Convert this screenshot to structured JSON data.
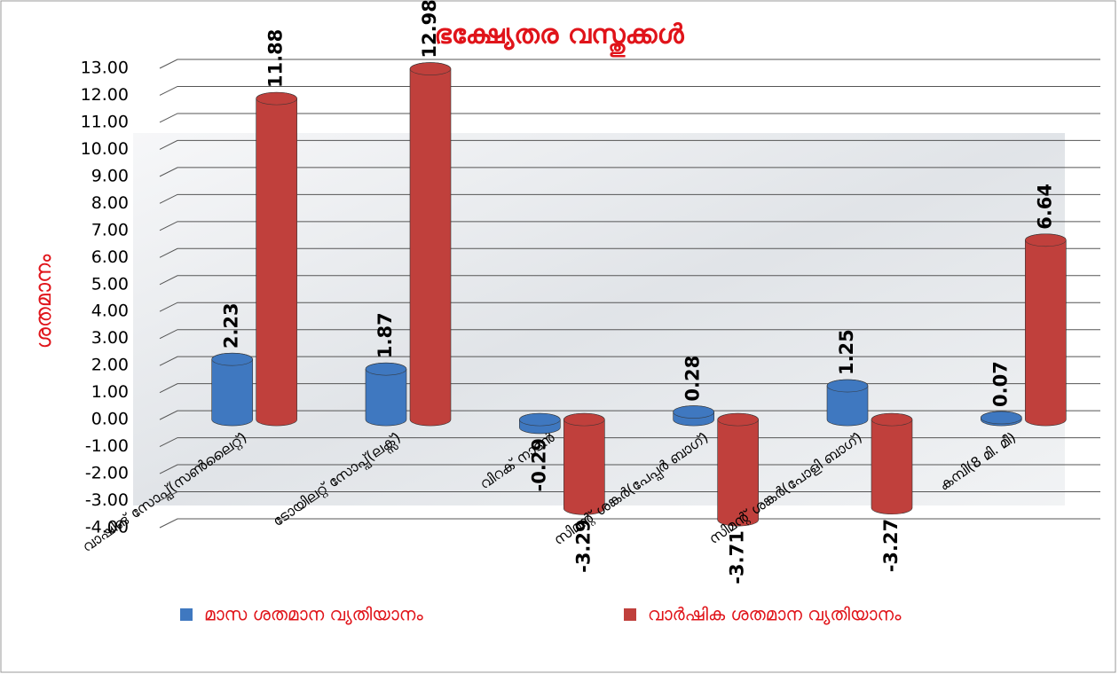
{
  "chart_data": {
    "type": "bar",
    "title": "ഭക്ഷ്യേതര വസ്തുക്കൾ",
    "y_label": "ശതമാനം",
    "categories": [
      "വാഷിങ് സോപ്പ്(സൺലൈറ്റ്)",
      "ടോയിലറ്റ് സോപ്പ്(ലക്സ്)",
      "വിറക് നാടൻ",
      "സിമന്റ് ശങ്കർ(പേപ്പർ ബാഗ്)",
      "സിമന്റ് ശങ്കർ(പോളി ബാഗ്)",
      "കമ്പി(8 മി. മീ)"
    ],
    "series": [
      {
        "name": "മാസ ശതമാന വ്യതിയാനം",
        "color": "#3f78c0",
        "values": [
          2.23,
          1.87,
          -0.29,
          0.28,
          1.25,
          0.07
        ]
      },
      {
        "name": "വാർഷിക  ശതമാന വ്യതിയാനം",
        "color": "#c0403c",
        "values": [
          11.88,
          12.98,
          -3.29,
          -3.71,
          -3.27,
          6.64
        ]
      }
    ],
    "ylim": [
      -4,
      13
    ],
    "yticks": [
      {
        "value": -4,
        "label": "-4.00"
      },
      {
        "value": -3,
        "label": "-3.00"
      },
      {
        "value": -2,
        "label": "-2.00"
      },
      {
        "value": -1,
        "label": "-1.00"
      },
      {
        "value": 0,
        "label": "0.00"
      },
      {
        "value": 1,
        "label": "1.00"
      },
      {
        "value": 2,
        "label": "2.00"
      },
      {
        "value": 3,
        "label": "3.00"
      },
      {
        "value": 4,
        "label": "4.00"
      },
      {
        "value": 5,
        "label": "5.00"
      },
      {
        "value": 6,
        "label": "6.00"
      },
      {
        "value": 7,
        "label": "7.00"
      },
      {
        "value": 8,
        "label": "8.00"
      },
      {
        "value": 9,
        "label": "9.00"
      },
      {
        "value": 10,
        "label": "10.00"
      },
      {
        "value": 11,
        "label": "11.00"
      },
      {
        "value": 12,
        "label": "12.00"
      },
      {
        "value": 13,
        "label": "13.00"
      }
    ],
    "grid": true
  }
}
